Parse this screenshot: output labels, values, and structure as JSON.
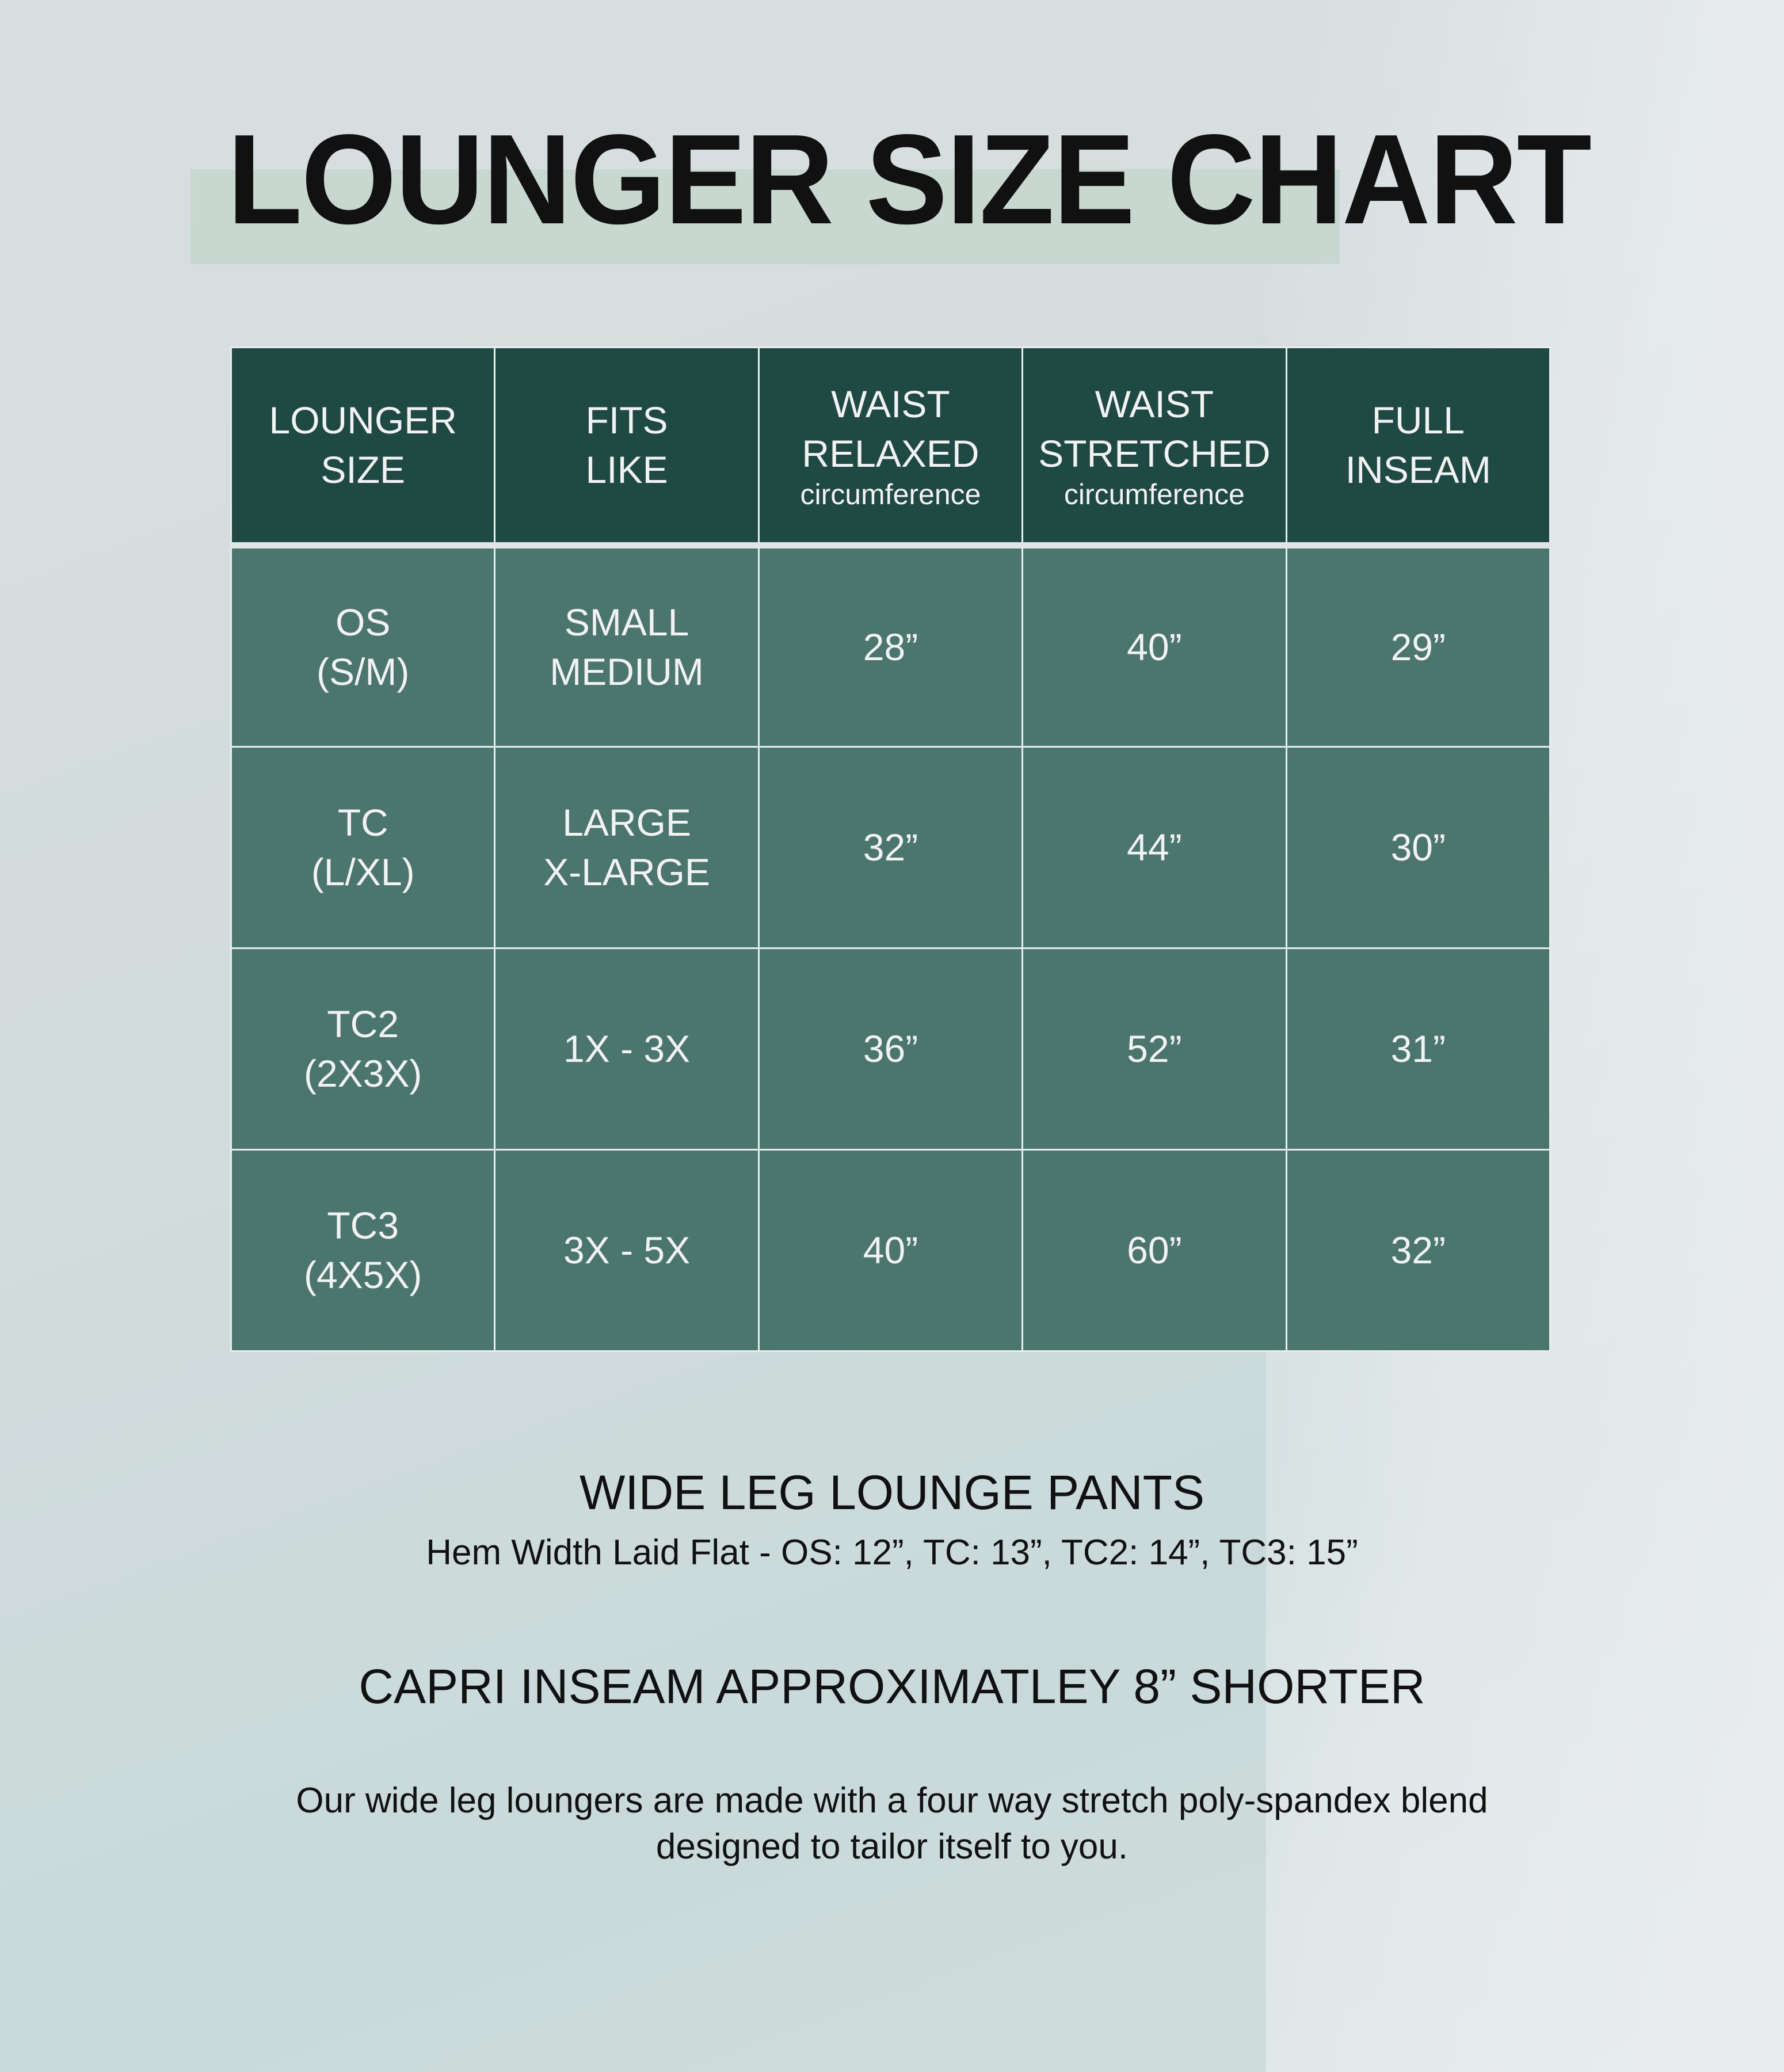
{
  "title": "LOUNGER SIZE CHART",
  "table": {
    "headers": [
      {
        "line1": "LOUNGER",
        "line2": "SIZE",
        "sub": ""
      },
      {
        "line1": "FITS",
        "line2": "LIKE",
        "sub": ""
      },
      {
        "line1": "WAIST",
        "line2": "RELAXED",
        "sub": "circumference"
      },
      {
        "line1": "WAIST",
        "line2": "STRETCHED",
        "sub": "circumference"
      },
      {
        "line1": "FULL",
        "line2": "INSEAM",
        "sub": ""
      }
    ],
    "rows": [
      {
        "size1": "OS",
        "size2": "(S/M)",
        "fit1": "SMALL",
        "fit2": "MEDIUM",
        "relaxed": "28”",
        "stretched": "40”",
        "inseam": "29”"
      },
      {
        "size1": "TC",
        "size2": "(L/XL)",
        "fit1": "LARGE",
        "fit2": "X-LARGE",
        "relaxed": "32”",
        "stretched": "44”",
        "inseam": "30”"
      },
      {
        "size1": "TC2",
        "size2": "(2X3X)",
        "fit1": "1X - 3X",
        "fit2": "",
        "relaxed": "36”",
        "stretched": "52”",
        "inseam": "31”"
      },
      {
        "size1": "TC3",
        "size2": "(4X5X)",
        "fit1": "3X - 5X",
        "fit2": "",
        "relaxed": "40”",
        "stretched": "60”",
        "inseam": "32”"
      }
    ]
  },
  "notes": {
    "heading": "WIDE LEG LOUNGE PANTS",
    "hem": "Hem Width Laid Flat - OS: 12”, TC: 13”, TC2: 14”, TC3: 15”",
    "capri": "CAPRI INSEAM APPROXIMATLEY 8” SHORTER",
    "desc1": "Our wide leg loungers are made with a four way stretch poly-spandex blend",
    "desc2": "designed to tailor itself to you."
  },
  "colors": {
    "header": "#1e4a43",
    "body": "#4a766d",
    "highlight": "#c8d8d0"
  }
}
